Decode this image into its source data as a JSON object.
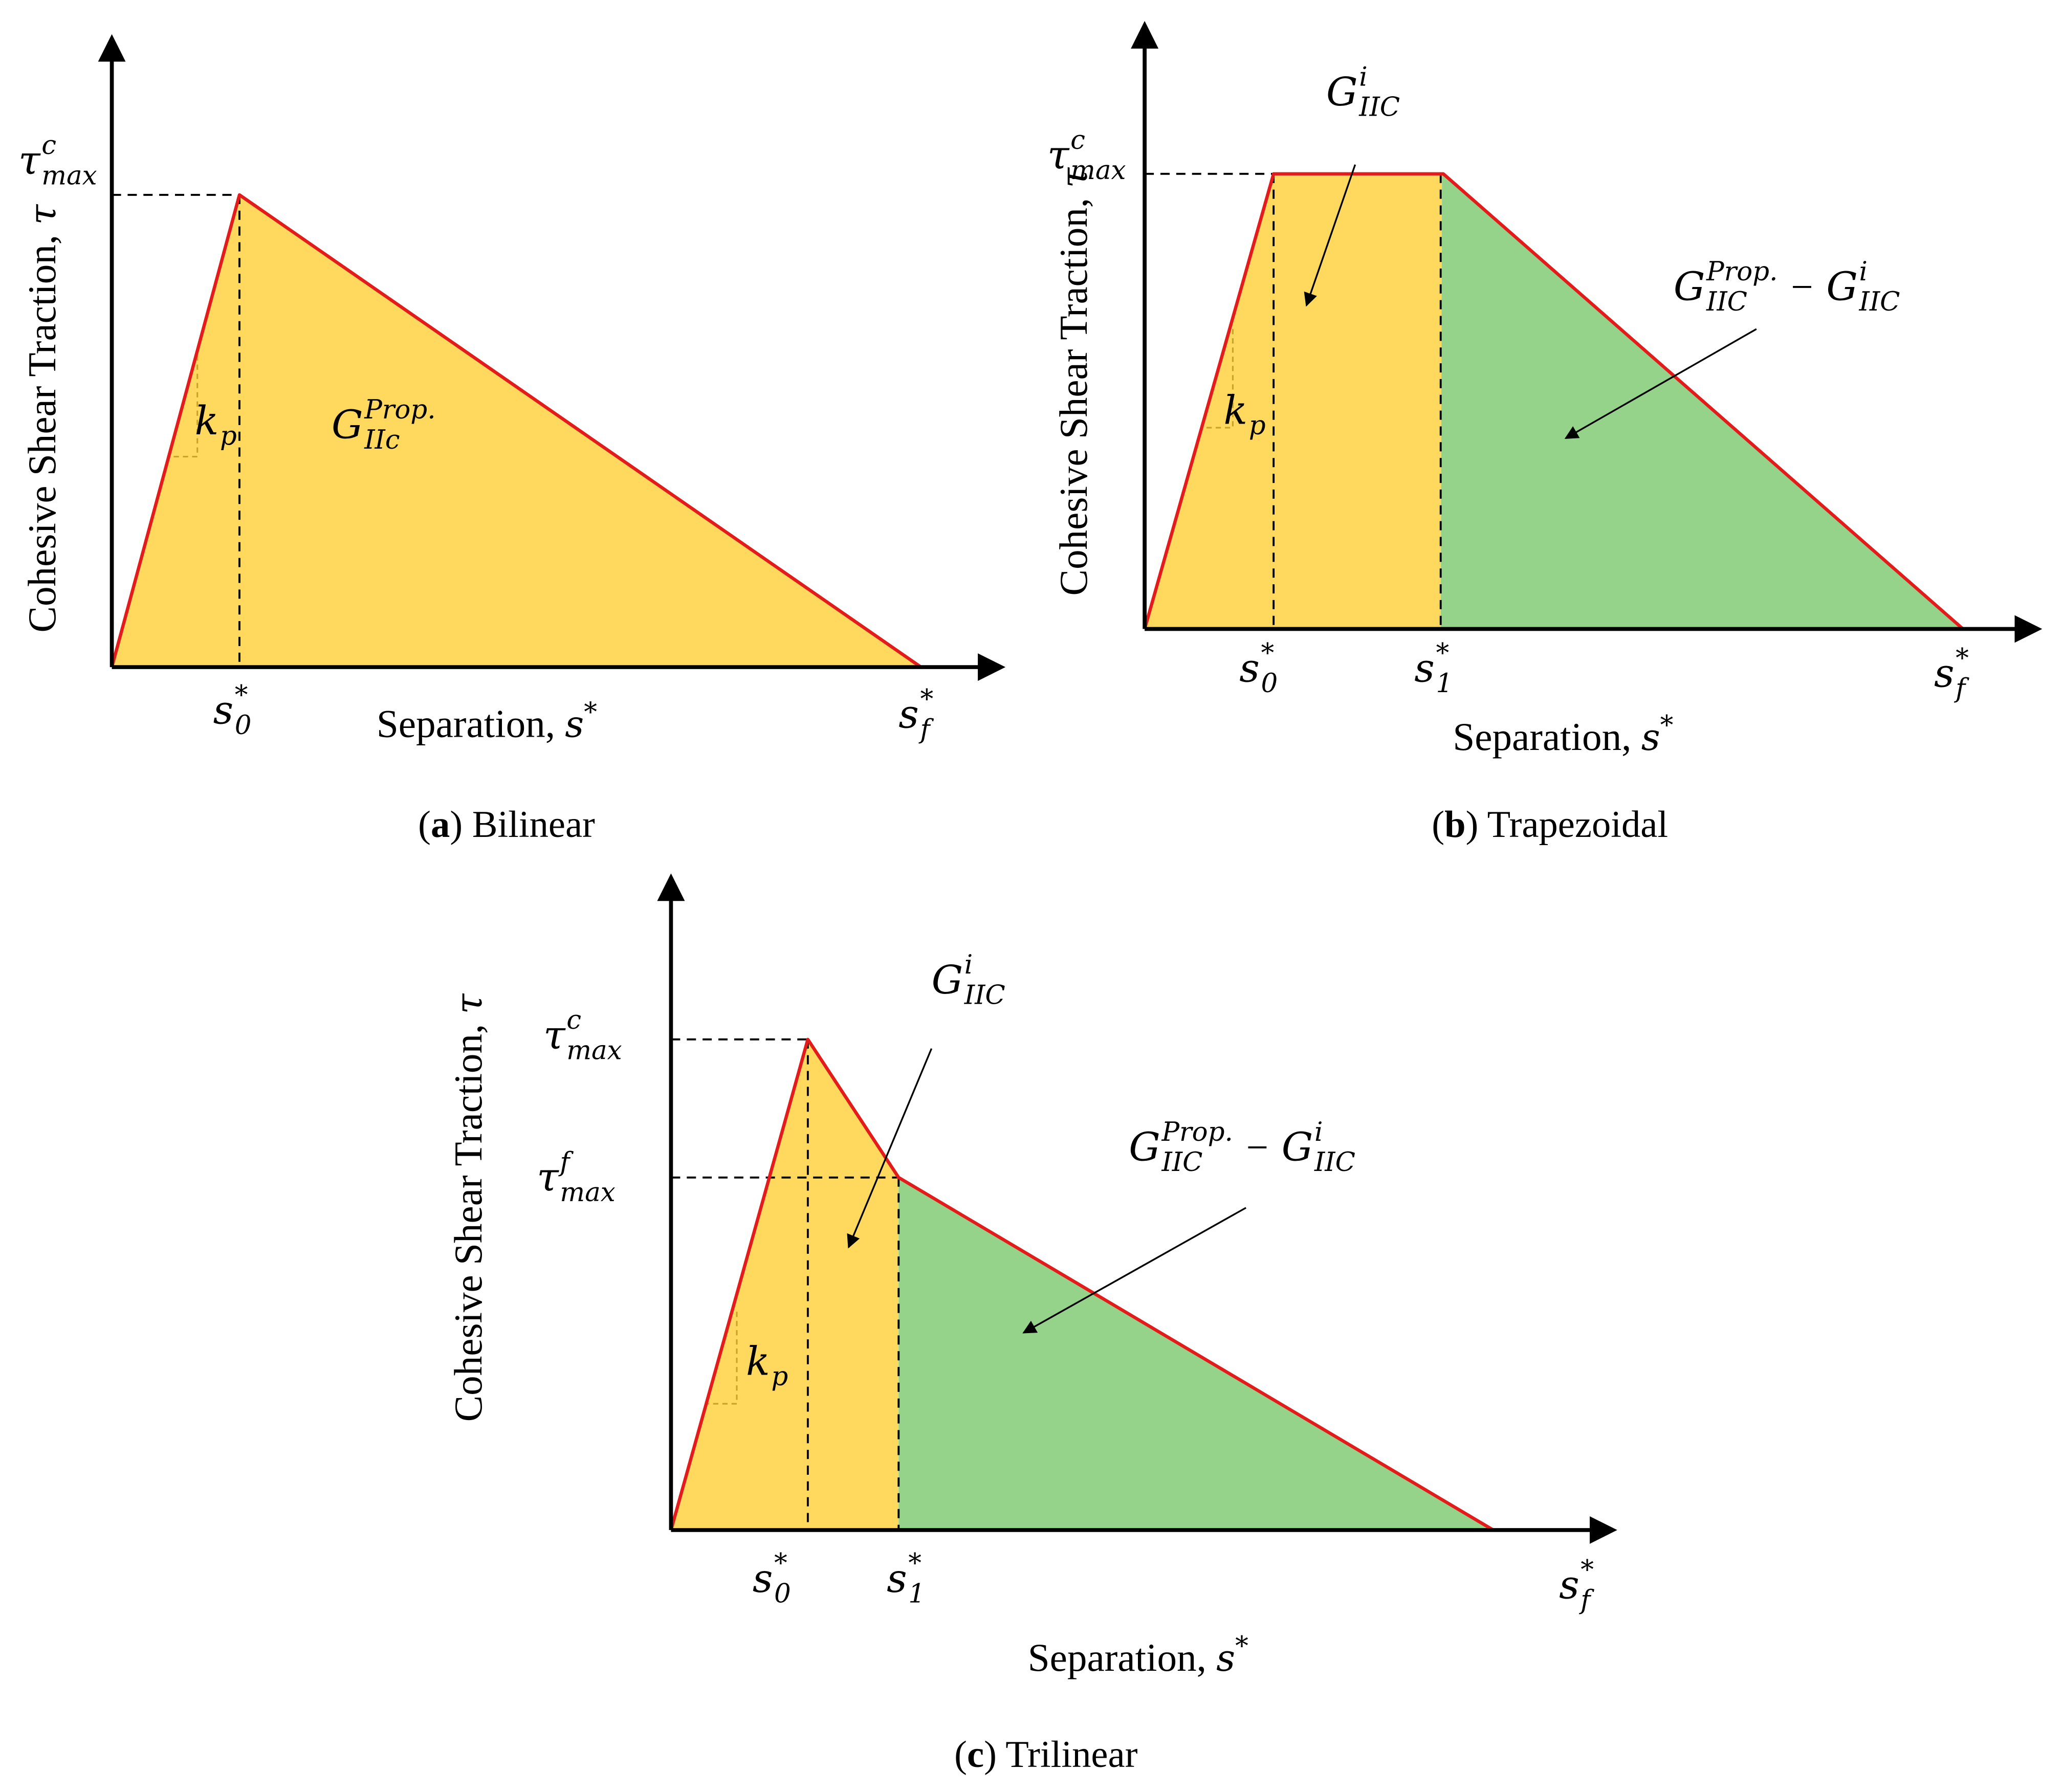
{
  "panels": [
    {
      "caption": {
        "open": "(",
        "letter": "a",
        "close": ") Bilinear"
      },
      "y_label": {
        "text": "Cohesive Shear Traction, ",
        "symbol": "τ"
      },
      "x_label": {
        "text": "Separation, ",
        "symbol": "s",
        "sup": "*"
      },
      "y_marks": [
        {
          "base": "τ",
          "sup": "c",
          "sub": "max"
        }
      ],
      "x_marks": [
        {
          "base": "s",
          "sup": "*",
          "sub": "0"
        },
        {
          "base": "s",
          "sup": "*",
          "sub": "f"
        }
      ],
      "slope": {
        "base": "k",
        "sub": "p"
      },
      "regions": [
        {
          "terms": [
            {
              "base": "G",
              "sup": "Prop.",
              "sub": "IIc"
            }
          ]
        }
      ]
    },
    {
      "caption": {
        "open": "(",
        "letter": "b",
        "close": ") Trapezoidal"
      },
      "y_label": {
        "text": "Cohesive Shear Traction, ",
        "symbol": "τ"
      },
      "x_label": {
        "text": "Separation, ",
        "symbol": "s",
        "sup": "*"
      },
      "y_marks": [
        {
          "base": "τ",
          "sup": "c",
          "sub": "max"
        }
      ],
      "x_marks": [
        {
          "base": "s",
          "sup": "*",
          "sub": "0"
        },
        {
          "base": "s",
          "sup": "*",
          "sub": "1"
        },
        {
          "base": "s",
          "sup": "*",
          "sub": "f"
        }
      ],
      "slope": {
        "base": "k",
        "sub": "p"
      },
      "regions": [
        {
          "terms": [
            {
              "base": "G",
              "sup": "i",
              "sub": "IIC"
            }
          ]
        },
        {
          "terms": [
            {
              "base": "G",
              "sup": "Prop.",
              "sub": "IIC"
            },
            {
              "op": "−"
            },
            {
              "base": "G",
              "sup": "i",
              "sub": "IIC"
            }
          ]
        }
      ]
    },
    {
      "caption": {
        "open": "(",
        "letter": "c",
        "close": ") Trilinear"
      },
      "y_label": {
        "text": "Cohesive Shear Traction, ",
        "symbol": "τ"
      },
      "x_label": {
        "text": "Separation, ",
        "symbol": "s",
        "sup": "*"
      },
      "y_marks": [
        {
          "base": "τ",
          "sup": "c",
          "sub": "max"
        },
        {
          "base": "τ",
          "sup": "f",
          "sub": "max"
        }
      ],
      "x_marks": [
        {
          "base": "s",
          "sup": "*",
          "sub": "0"
        },
        {
          "base": "s",
          "sup": "*",
          "sub": "1"
        },
        {
          "base": "s",
          "sup": "*",
          "sub": "f"
        }
      ],
      "slope": {
        "base": "k",
        "sub": "p"
      },
      "regions": [
        {
          "terms": [
            {
              "base": "G",
              "sup": "i",
              "sub": "IIC"
            }
          ]
        },
        {
          "terms": [
            {
              "base": "G",
              "sup": "Prop.",
              "sub": "IIC"
            },
            {
              "op": "−"
            },
            {
              "base": "G",
              "sup": "i",
              "sub": "IIC"
            }
          ]
        }
      ]
    }
  ]
}
